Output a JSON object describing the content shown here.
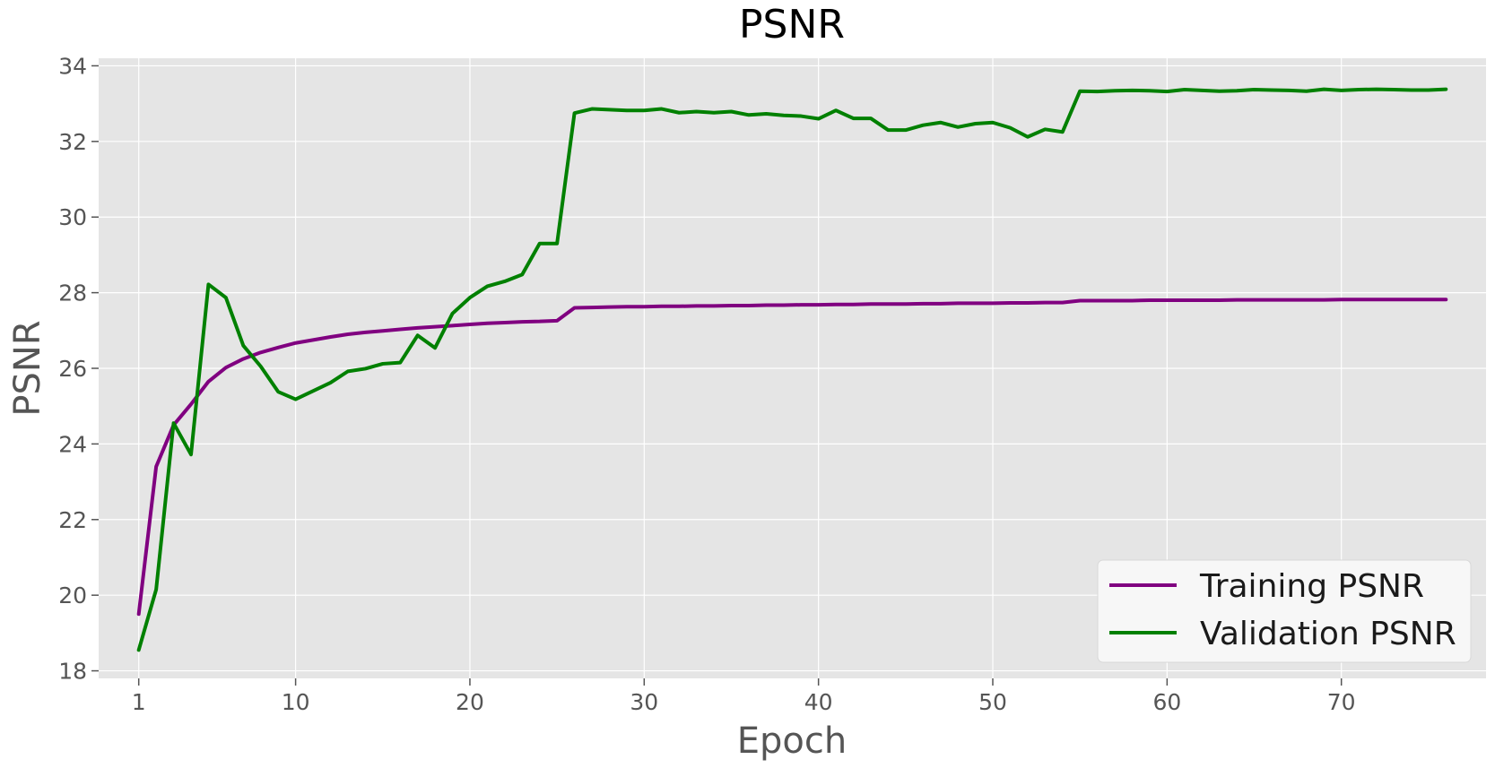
{
  "chart_data": {
    "type": "line",
    "title": "PSNR",
    "xlabel": "Epoch",
    "ylabel": "PSNR",
    "xlim": [
      -1.3,
      78.3
    ],
    "ylim": [
      17.8,
      34.2
    ],
    "xticks": [
      1,
      10,
      20,
      30,
      40,
      50,
      60,
      70
    ],
    "yticks": [
      18,
      20,
      22,
      24,
      26,
      28,
      30,
      32,
      34
    ],
    "grid": true,
    "legend_position": "lower right",
    "x": [
      1,
      2,
      3,
      4,
      5,
      6,
      7,
      8,
      9,
      10,
      11,
      12,
      13,
      14,
      15,
      16,
      17,
      18,
      19,
      20,
      21,
      22,
      23,
      24,
      25,
      26,
      27,
      28,
      29,
      30,
      31,
      32,
      33,
      34,
      35,
      36,
      37,
      38,
      39,
      40,
      41,
      42,
      43,
      44,
      45,
      46,
      47,
      48,
      49,
      50,
      51,
      52,
      53,
      54,
      55,
      56,
      57,
      58,
      59,
      60,
      61,
      62,
      63,
      64,
      65,
      66,
      67,
      68,
      69,
      70,
      71,
      72,
      73,
      74,
      75,
      76
    ],
    "series": [
      {
        "name": "Training PSNR",
        "color": "#800080",
        "values": [
          19.5,
          23.4,
          24.5,
          25.05,
          25.65,
          26.02,
          26.25,
          26.42,
          26.55,
          26.67,
          26.75,
          26.83,
          26.9,
          26.95,
          26.99,
          27.03,
          27.07,
          27.1,
          27.13,
          27.16,
          27.19,
          27.21,
          27.23,
          27.24,
          27.26,
          27.6,
          27.61,
          27.62,
          27.63,
          27.63,
          27.64,
          27.64,
          27.65,
          27.65,
          27.66,
          27.66,
          27.67,
          27.67,
          27.68,
          27.68,
          27.69,
          27.69,
          27.7,
          27.7,
          27.7,
          27.71,
          27.71,
          27.72,
          27.72,
          27.72,
          27.73,
          27.73,
          27.74,
          27.74,
          27.79,
          27.79,
          27.79,
          27.79,
          27.8,
          27.8,
          27.8,
          27.8,
          27.8,
          27.81,
          27.81,
          27.81,
          27.81,
          27.81,
          27.81,
          27.82,
          27.82,
          27.82,
          27.82,
          27.82,
          27.82,
          27.82
        ]
      },
      {
        "name": "Validation PSNR",
        "color": "#008000",
        "values": [
          18.55,
          20.15,
          24.55,
          23.72,
          28.22,
          27.87,
          26.6,
          26.05,
          25.38,
          25.18,
          25.4,
          25.62,
          25.92,
          25.99,
          26.12,
          26.15,
          26.87,
          26.54,
          27.45,
          27.87,
          28.17,
          28.3,
          28.48,
          29.3,
          29.3,
          32.75,
          32.86,
          32.84,
          32.82,
          32.82,
          32.86,
          32.76,
          32.79,
          32.76,
          32.79,
          32.7,
          32.73,
          32.69,
          32.67,
          32.6,
          32.82,
          32.61,
          32.61,
          32.3,
          32.3,
          32.43,
          32.5,
          32.38,
          32.47,
          32.5,
          32.36,
          32.12,
          32.32,
          32.25,
          33.33,
          33.32,
          33.34,
          33.35,
          33.34,
          33.32,
          33.37,
          33.35,
          33.33,
          33.34,
          33.37,
          33.36,
          33.35,
          33.33,
          33.38,
          33.35,
          33.37,
          33.38,
          33.37,
          33.36,
          33.36,
          33.38
        ]
      }
    ]
  }
}
